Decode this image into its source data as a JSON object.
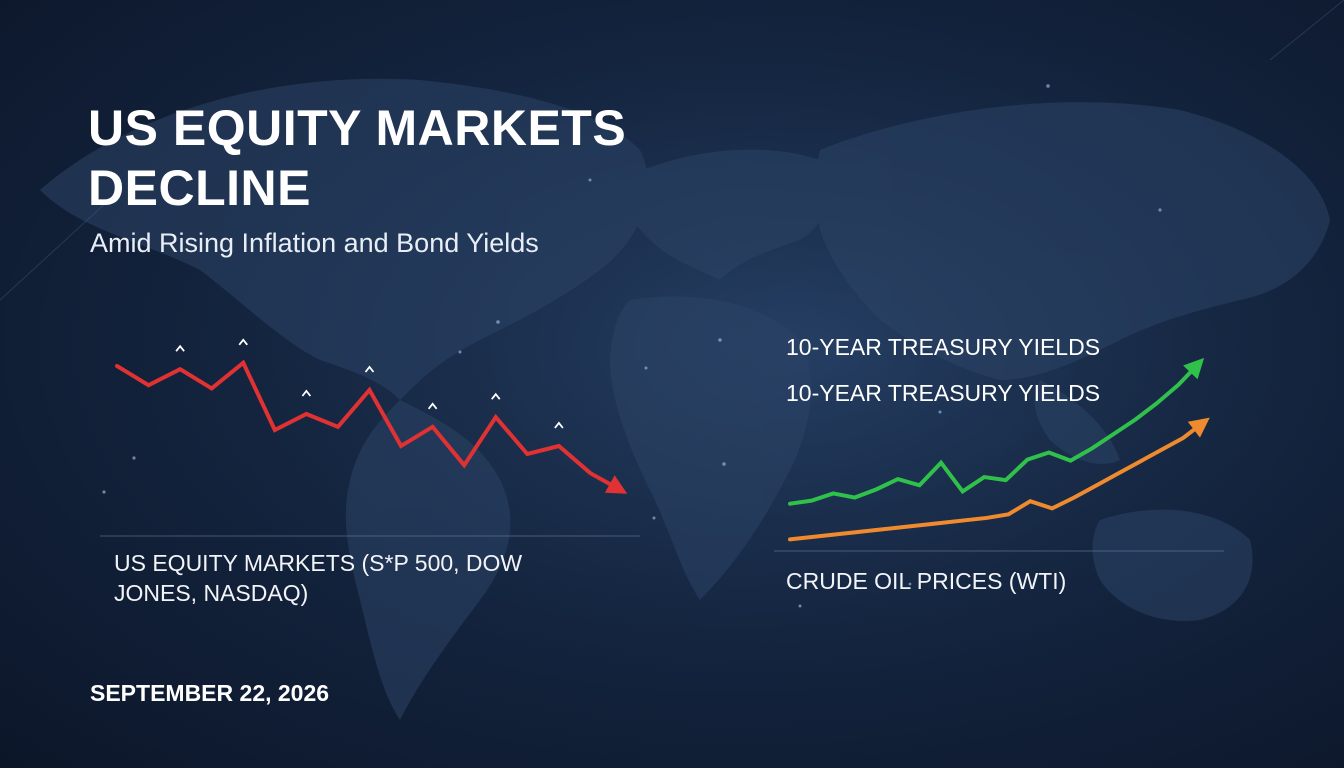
{
  "headline": {
    "title": "US EQUITY MARKETS DECLINE",
    "subtitle": "Amid Rising Inflation and Bond Yields"
  },
  "date": "SEPTEMBER 22, 2026",
  "colors": {
    "equity_line": "#e03232",
    "yield_line": "#2fc14a",
    "oil_line": "#ef8a2e",
    "background": "#142540"
  },
  "chart_data": [
    {
      "type": "line",
      "caption": "US EQUITY MARKETS (S*P 500, DOW JONES, NASDAQ)",
      "x": [
        0,
        1,
        2,
        3,
        4,
        5,
        6,
        7,
        8,
        9,
        10,
        11,
        12,
        13,
        14,
        15,
        16
      ],
      "series": [
        {
          "values": [
            70,
            58,
            68,
            56,
            72,
            30,
            40,
            32,
            55,
            20,
            32,
            8,
            38,
            15,
            20,
            3,
            -8
          ]
        }
      ],
      "ylim": [
        -15,
        80
      ],
      "trend": "down",
      "grid": false
    },
    {
      "type": "line",
      "caption": "CRUDE OIL PRICES (WTI)",
      "legend": [
        "10-YEAR TREASURY YIELDS",
        "10-YEAR TREASURY YIELDS"
      ],
      "legend_position": "top-left",
      "x": [
        0,
        1,
        2,
        3,
        4,
        5,
        6,
        7,
        8,
        9,
        10,
        11,
        12,
        13,
        14,
        15,
        16,
        17,
        18,
        19
      ],
      "series": [
        {
          "values": [
            12,
            15,
            22,
            18,
            26,
            36,
            30,
            52,
            24,
            38,
            35,
            55,
            62,
            54,
            66,
            80,
            94,
            110,
            128,
            150
          ]
        },
        {
          "values": [
            3,
            5,
            7,
            9,
            11,
            13,
            15,
            17,
            19,
            21,
            24,
            35,
            29,
            38,
            48,
            58,
            68,
            78,
            88,
            102
          ]
        }
      ],
      "ylim": [
        0,
        160
      ],
      "trend": "up",
      "grid": false
    }
  ]
}
